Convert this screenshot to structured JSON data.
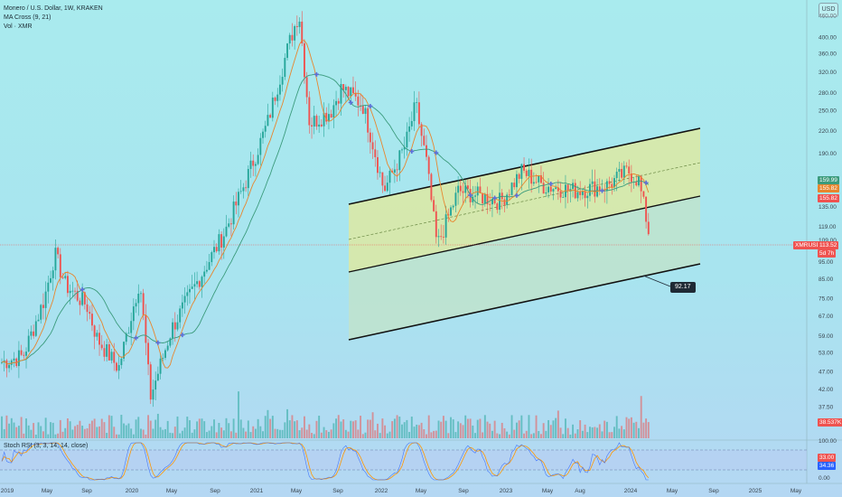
{
  "header": {
    "symbol_title": "Monero / U.S. Dollar, 1W, KRAKEN",
    "ma_indicator": "MA Cross (9, 21)",
    "vol_indicator": "Vol · XMR",
    "currency_button": "USD"
  },
  "price_axis": {
    "ticks": [
      "460.00",
      "400.00",
      "360.00",
      "320.00",
      "280.00",
      "250.00",
      "220.00",
      "190.00",
      "160.00",
      "135.00",
      "119.00",
      "109.00",
      "95.00",
      "85.00",
      "75.00",
      "67.00",
      "59.00",
      "53.00",
      "47.00",
      "42.00",
      "37.50",
      "33.50"
    ]
  },
  "rsi_axis": {
    "ticks": [
      "100.00",
      "50.00",
      "0.00"
    ]
  },
  "time_axis": {
    "labels": [
      "2019",
      "May",
      "Sep",
      "2020",
      "May",
      "Sep",
      "2021",
      "May",
      "Sep",
      "2022",
      "May",
      "Sep",
      "2023",
      "May",
      "Aug",
      "2024",
      "May",
      "Sep",
      "2025",
      "May"
    ]
  },
  "price_badges": {
    "ma_fast": "159.99",
    "ma_slow": "155.82",
    "ma_other": "155.82",
    "last_symbol": "XMRUSD",
    "last_price": "113.52",
    "countdown": "5d 7h",
    "volume_value": "38.537K",
    "rsi_k": "33.00",
    "rsi_d": "34.36"
  },
  "stoch_rsi_label": "Stoch RSI (3, 3, 14, 14, close)",
  "target_label": "92.17",
  "colors": {
    "up": "#26a69a",
    "down": "#ef5350",
    "ma_fast": "#e8862e",
    "ma_slow": "#3b9b7c",
    "channel_fill": "#dbe8a3",
    "channel_lower_fill": "#c6e4c7",
    "cross_marker": "#5b6fd9",
    "rsi_k": "#2962ff",
    "rsi_d": "#ff9800"
  },
  "chart_data": {
    "type": "candlestick",
    "title": "Monero / U.S. Dollar, 1W, KRAKEN",
    "x_range": [
      "2019-01",
      "2025-06"
    ],
    "y_scale": "log",
    "y_range": [
      33.5,
      480
    ],
    "last_price": 113.52,
    "close_path": [
      {
        "x": "2019-01",
        "y": 50
      },
      {
        "x": "2019-03",
        "y": 52
      },
      {
        "x": "2019-05",
        "y": 75
      },
      {
        "x": "2019-06",
        "y": 100
      },
      {
        "x": "2019-07",
        "y": 82
      },
      {
        "x": "2019-09",
        "y": 72
      },
      {
        "x": "2019-10",
        "y": 58
      },
      {
        "x": "2019-12",
        "y": 48
      },
      {
        "x": "2020-02",
        "y": 85
      },
      {
        "x": "2020-03",
        "y": 40
      },
      {
        "x": "2020-05",
        "y": 62
      },
      {
        "x": "2020-08",
        "y": 90
      },
      {
        "x": "2020-10",
        "y": 115
      },
      {
        "x": "2020-12",
        "y": 160
      },
      {
        "x": "2021-02",
        "y": 230
      },
      {
        "x": "2021-04",
        "y": 380
      },
      {
        "x": "2021-05",
        "y": 470
      },
      {
        "x": "2021-06",
        "y": 230
      },
      {
        "x": "2021-08",
        "y": 250
      },
      {
        "x": "2021-09",
        "y": 290
      },
      {
        "x": "2021-11",
        "y": 260
      },
      {
        "x": "2021-12",
        "y": 200
      },
      {
        "x": "2022-01",
        "y": 150
      },
      {
        "x": "2022-03",
        "y": 200
      },
      {
        "x": "2022-04",
        "y": 260
      },
      {
        "x": "2022-05",
        "y": 180
      },
      {
        "x": "2022-06",
        "y": 105
      },
      {
        "x": "2022-08",
        "y": 150
      },
      {
        "x": "2022-10",
        "y": 145
      },
      {
        "x": "2022-12",
        "y": 140
      },
      {
        "x": "2023-02",
        "y": 170
      },
      {
        "x": "2023-04",
        "y": 155
      },
      {
        "x": "2023-07",
        "y": 150
      },
      {
        "x": "2023-10",
        "y": 155
      },
      {
        "x": "2023-12",
        "y": 170
      },
      {
        "x": "2024-01",
        "y": 160
      },
      {
        "x": "2024-02",
        "y": 113.52
      }
    ],
    "channel": {
      "upper": {
        "start": {
          "x": "2021-10",
          "y": 170
        },
        "end": {
          "x": "2024-09",
          "y": 250
        }
      },
      "mid": {
        "start": {
          "x": "2021-10",
          "y": 122
        },
        "end": {
          "x": "2024-09",
          "y": 200
        }
      },
      "lower": {
        "start": {
          "x": "2021-10",
          "y": 92
        },
        "end": {
          "x": "2024-09",
          "y": 160
        }
      },
      "bottom": {
        "start": {
          "x": "2021-10",
          "y": 59
        },
        "end": {
          "x": "2024-09",
          "y": 100
        }
      },
      "target": 92.17
    },
    "indicators": [
      "MA Cross (9, 21)",
      "Vol · XMR",
      "Stoch RSI (3, 3, 14, 14, close)"
    ]
  }
}
